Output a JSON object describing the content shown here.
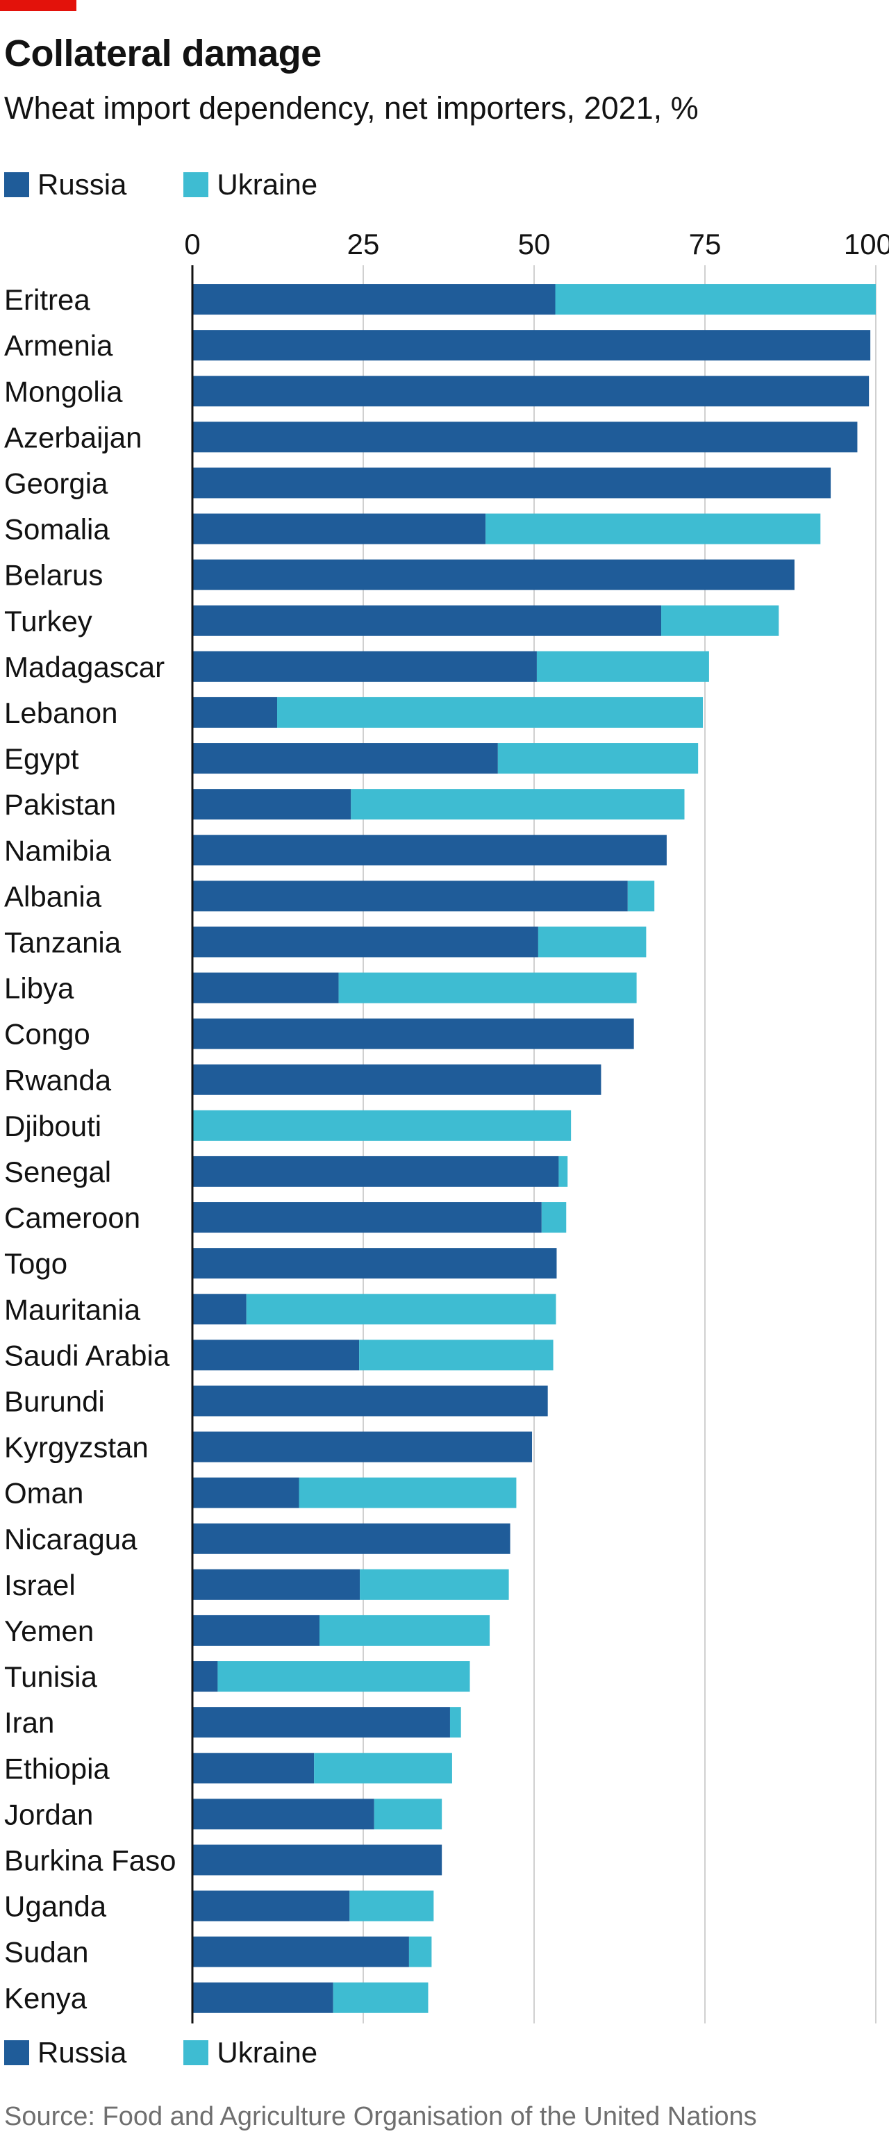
{
  "colors": {
    "accent": "#e3120b",
    "russia": "#1f5c99",
    "ukraine": "#3ebcd2",
    "grid": "#d0d0d0",
    "axis": "#121212",
    "text": "#121212",
    "source": "#6f6f6f"
  },
  "chart_data": {
    "type": "bar",
    "orientation": "horizontal",
    "stacked": true,
    "title": "Collateral damage",
    "subtitle": "Wheat import dependency, net importers, 2021, %",
    "xlim": [
      0,
      100
    ],
    "xticks": [
      0,
      25,
      50,
      75,
      100
    ],
    "grid": true,
    "legend_position": "top-left and bottom-left",
    "categories": [
      "Eritrea",
      "Armenia",
      "Mongolia",
      "Azerbaijan",
      "Georgia",
      "Somalia",
      "Belarus",
      "Turkey",
      "Madagascar",
      "Lebanon",
      "Egypt",
      "Pakistan",
      "Namibia",
      "Albania",
      "Tanzania",
      "Libya",
      "Congo",
      "Rwanda",
      "Djibouti",
      "Senegal",
      "Cameroon",
      "Togo",
      "Mauritania",
      "Saudi Arabia",
      "Burundi",
      "Kyrgyzstan",
      "Oman",
      "Nicaragua",
      "Israel",
      "Yemen",
      "Tunisia",
      "Iran",
      "Ethiopia",
      "Jordan",
      "Burkina Faso",
      "Uganda",
      "Sudan",
      "Kenya"
    ],
    "series": [
      {
        "name": "Russia",
        "values": [
          53.1,
          99.2,
          99.0,
          97.3,
          93.4,
          42.9,
          88.1,
          68.6,
          50.4,
          12.4,
          44.7,
          23.2,
          69.4,
          63.7,
          50.6,
          21.4,
          64.6,
          59.8,
          0,
          53.6,
          51.1,
          53.3,
          7.9,
          24.4,
          52.0,
          49.7,
          15.6,
          46.5,
          24.5,
          18.6,
          3.7,
          37.7,
          17.8,
          26.6,
          36.5,
          23.0,
          31.7,
          20.6
        ]
      },
      {
        "name": "Ukraine",
        "values": [
          46.9,
          0,
          0,
          0,
          0,
          49.0,
          0,
          17.2,
          25.2,
          62.3,
          29.3,
          48.8,
          0,
          3.9,
          15.8,
          43.6,
          0,
          0,
          55.4,
          1.3,
          3.6,
          0,
          45.3,
          28.4,
          0,
          0,
          31.8,
          0,
          21.8,
          24.9,
          36.9,
          1.6,
          20.2,
          9.9,
          0,
          12.3,
          3.3,
          13.9
        ]
      }
    ]
  },
  "legend": {
    "items": [
      {
        "label": "Russia",
        "color": "#1f5c99"
      },
      {
        "label": "Ukraine",
        "color": "#3ebcd2"
      }
    ]
  },
  "source": "Source: Food and Agriculture Organisation of the United Nations"
}
